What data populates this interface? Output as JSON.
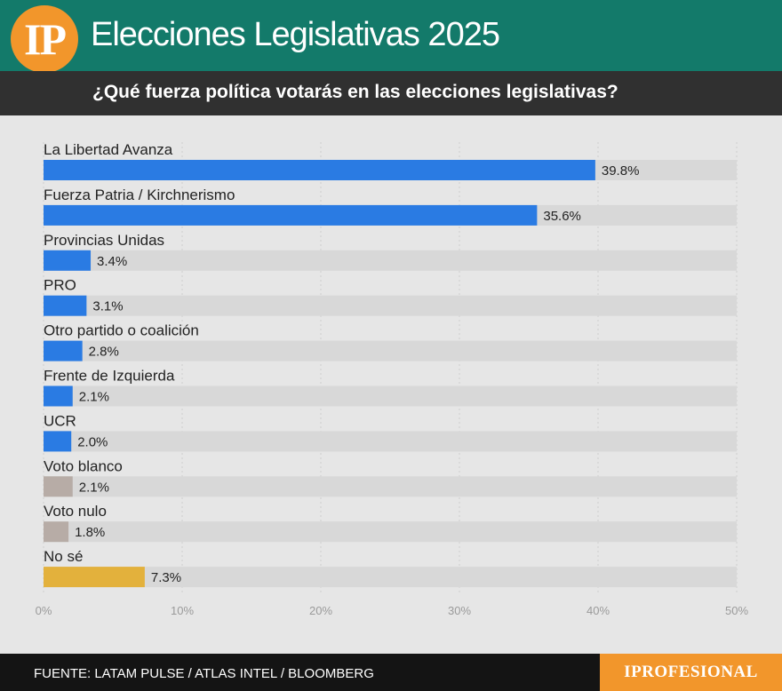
{
  "header": {
    "logo_text": "IP",
    "title": "Elecciones Legislativas 2025"
  },
  "subtitle": "¿Qué fuerza política votarás en las elecciones legislativas?",
  "colors": {
    "header_bg": "#137a6a",
    "accent_orange": "#f2962b",
    "bar_blue": "#2a7be3",
    "bar_gray": "#b7aca6",
    "bar_yellow": "#e3b13c",
    "track": "#d8d8d8"
  },
  "chart_data": {
    "type": "bar",
    "orientation": "horizontal",
    "categories": [
      "La Libertad Avanza",
      "Fuerza Patria / Kirchnerismo",
      "Provincias Unidas",
      "PRO",
      "Otro partido o coalición",
      "Frente de Izquierda",
      "UCR",
      "Voto blanco",
      "Voto nulo",
      "No sé"
    ],
    "values": [
      39.8,
      35.6,
      3.4,
      3.1,
      2.8,
      2.1,
      2.0,
      2.1,
      1.8,
      7.3
    ],
    "value_labels": [
      "39.8%",
      "35.6%",
      "3.4%",
      "3.1%",
      "2.8%",
      "2.1%",
      "2.0%",
      "2.1%",
      "1.8%",
      "7.3%"
    ],
    "bar_colors": [
      "#2a7be3",
      "#2a7be3",
      "#2a7be3",
      "#2a7be3",
      "#2a7be3",
      "#2a7be3",
      "#2a7be3",
      "#b7aca6",
      "#b7aca6",
      "#e3b13c"
    ],
    "xlim": [
      0,
      50
    ],
    "xticks": [
      0,
      10,
      20,
      30,
      40,
      50
    ],
    "xtick_labels": [
      "0%",
      "10%",
      "20%",
      "30%",
      "40%",
      "50%"
    ],
    "grid": true
  },
  "footer": {
    "source": "FUENTE: LATAM PULSE / ATLAS INTEL / BLOOMBERG",
    "brand": "IPROFESIONAL"
  }
}
